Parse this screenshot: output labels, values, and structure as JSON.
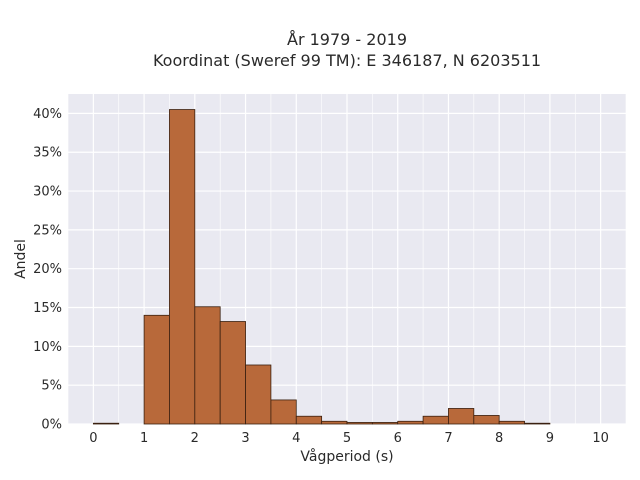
{
  "chart_data": {
    "type": "bar",
    "title_lines": [
      "År 1979 - 2019",
      "Koordinat (Sweref 99 TM): E 346187, N 6203511"
    ],
    "xlabel": "Vågperiod (s)",
    "ylabel": "Andel",
    "bin_width": 0.5,
    "bins": [
      {
        "x0": 0.0,
        "value": 0.1
      },
      {
        "x0": 0.5,
        "value": 0.0
      },
      {
        "x0": 1.0,
        "value": 14.0
      },
      {
        "x0": 1.5,
        "value": 40.5
      },
      {
        "x0": 2.0,
        "value": 15.1
      },
      {
        "x0": 2.5,
        "value": 13.2
      },
      {
        "x0": 3.0,
        "value": 7.6
      },
      {
        "x0": 3.5,
        "value": 3.1
      },
      {
        "x0": 4.0,
        "value": 1.0
      },
      {
        "x0": 4.5,
        "value": 0.35
      },
      {
        "x0": 5.0,
        "value": 0.2
      },
      {
        "x0": 5.5,
        "value": 0.2
      },
      {
        "x0": 6.0,
        "value": 0.35
      },
      {
        "x0": 6.5,
        "value": 1.0
      },
      {
        "x0": 7.0,
        "value": 2.0
      },
      {
        "x0": 7.5,
        "value": 1.1
      },
      {
        "x0": 8.0,
        "value": 0.35
      },
      {
        "x0": 8.5,
        "value": 0.1
      }
    ],
    "xlim": [
      -0.5,
      10.5
    ],
    "ylim": [
      0,
      42.5
    ],
    "x_ticks": [
      "0",
      "1",
      "2",
      "3",
      "4",
      "5",
      "6",
      "7",
      "8",
      "9",
      "10"
    ],
    "x_tick_values": [
      0,
      1,
      2,
      3,
      4,
      5,
      6,
      7,
      8,
      9,
      10
    ],
    "y_ticks": [
      "0%",
      "5%",
      "10%",
      "15%",
      "20%",
      "25%",
      "30%",
      "35%",
      "40%"
    ],
    "y_tick_values": [
      0,
      5,
      10,
      15,
      20,
      25,
      30,
      35,
      40
    ],
    "grid": true,
    "colors": {
      "bar_fill": "#b8693a",
      "bar_stroke": "#3a2010",
      "plot_background": "#e9e9f1",
      "grid": "#ffffff"
    }
  }
}
